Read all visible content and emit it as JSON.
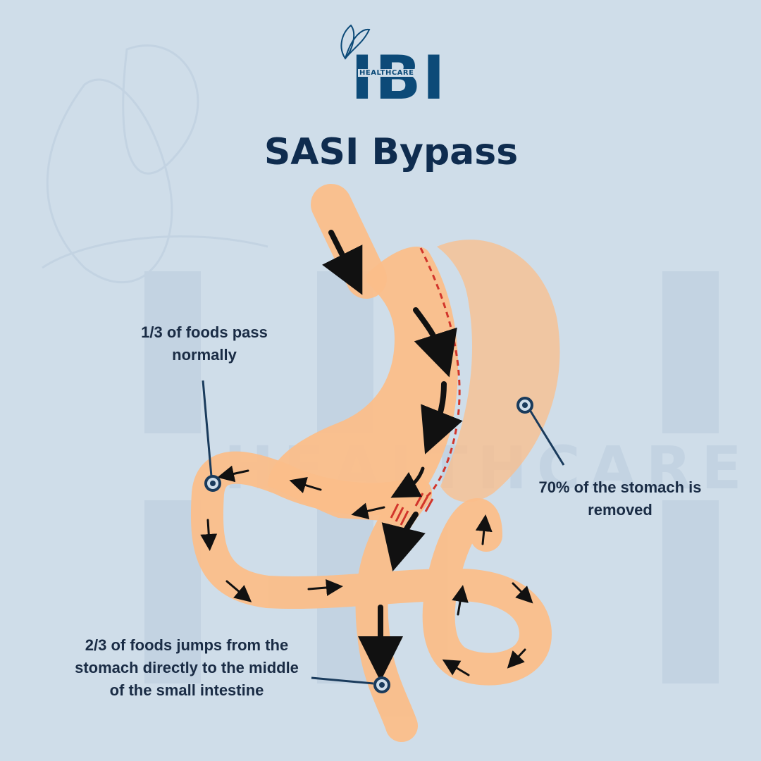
{
  "brand": {
    "logo_letters": "IBI",
    "logo_subtitle": "HEALTHCARE",
    "watermark": "HEALTHCARE",
    "accent_color": "#0c4a78"
  },
  "title": "SASI Bypass",
  "annotations": {
    "top_left_line1": "1/3 of foods pass",
    "top_left_line2": "normally",
    "right_line1": "70% of the stomach is",
    "right_line2": "removed",
    "bottom_line1": "2/3 of foods jumps from the",
    "bottom_line2": "stomach directly to the middle",
    "bottom_line3": "of the small intestine"
  },
  "colors": {
    "background": "#cfdde9",
    "organ": "#fbbe8a",
    "staple_line": "#d2352b",
    "callout": "#1a3b5c",
    "arrow": "#111111"
  }
}
